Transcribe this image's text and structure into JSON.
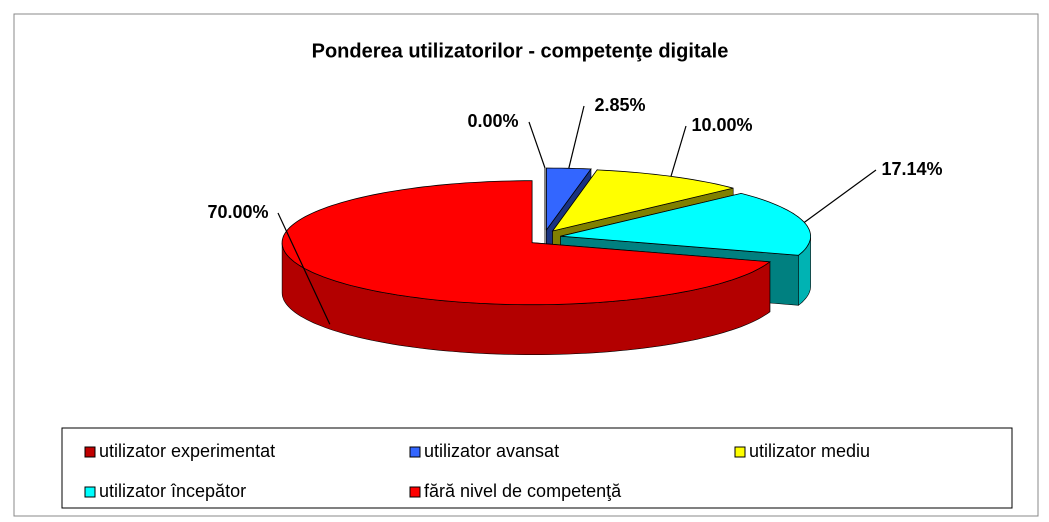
{
  "chart_data": {
    "type": "pie",
    "title": "Ponderea utilizatorilor  - competenţe digitale",
    "categories": [
      "utilizator experimentat",
      "utilizator avansat",
      "utilizator mediu",
      "utilizator începător",
      "fără nivel de competenţă"
    ],
    "values": [
      0,
      2.85,
      10,
      17.14,
      70
    ],
    "value_labels": [
      "0.00%",
      "2.85%",
      "10.00%",
      "17.14%",
      "70.00%"
    ],
    "colors": [
      "#c00000",
      "#3366ff",
      "#ffff00",
      "#00ffff",
      "#ff0000"
    ],
    "legend": "bottom"
  }
}
